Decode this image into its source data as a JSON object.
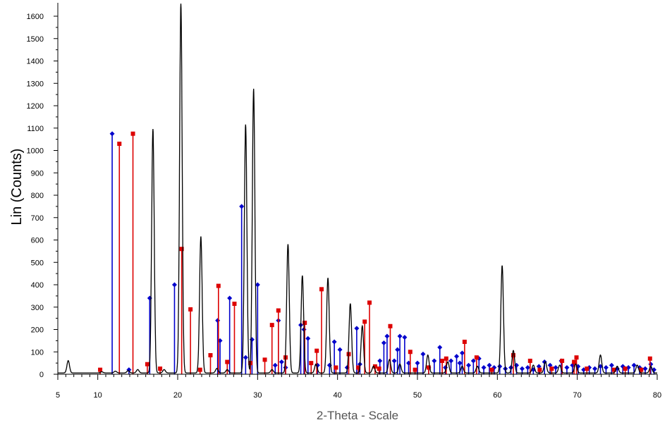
{
  "chart_data": {
    "type": "line",
    "title": "",
    "xlabel": "2-Theta - Scale",
    "ylabel": "Lin (Counts)",
    "xlim": [
      5,
      80
    ],
    "ylim": [
      0,
      1650
    ],
    "xticks": [
      5,
      10,
      20,
      30,
      40,
      50,
      60,
      70,
      80
    ],
    "yticks": [
      0,
      100,
      200,
      300,
      400,
      500,
      600,
      700,
      800,
      900,
      1000,
      1100,
      1200,
      1300,
      1400,
      1500,
      1600
    ],
    "grid": false,
    "legend": "none",
    "colors": {
      "pattern": "#000000",
      "blue": "#0000cc",
      "red": "#dd0000"
    },
    "pattern_peaks": [
      [
        6.3,
        55
      ],
      [
        10.5,
        5
      ],
      [
        12.2,
        8
      ],
      [
        13.8,
        10
      ],
      [
        15.0,
        15
      ],
      [
        16.9,
        1090
      ],
      [
        18.3,
        15
      ],
      [
        20.4,
        1650
      ],
      [
        22.9,
        610
      ],
      [
        24.9,
        20
      ],
      [
        26.2,
        15
      ],
      [
        28.5,
        1110
      ],
      [
        29.5,
        1270
      ],
      [
        31.8,
        15
      ],
      [
        33.8,
        575
      ],
      [
        35.6,
        435
      ],
      [
        37.3,
        40
      ],
      [
        38.8,
        425
      ],
      [
        41.6,
        310
      ],
      [
        43.1,
        210
      ],
      [
        44.5,
        30
      ],
      [
        46.5,
        60
      ],
      [
        47.8,
        40
      ],
      [
        51.3,
        80
      ],
      [
        53.8,
        50
      ],
      [
        55.6,
        30
      ],
      [
        57.5,
        30
      ],
      [
        60.6,
        480
      ],
      [
        62.0,
        100
      ],
      [
        64.5,
        35
      ],
      [
        66.0,
        50
      ],
      [
        67.8,
        35
      ],
      [
        69.8,
        40
      ],
      [
        72.9,
        80
      ],
      [
        75.0,
        30
      ],
      [
        77.5,
        35
      ],
      [
        79.2,
        30
      ]
    ],
    "series": [
      {
        "marker": "diamond",
        "color": "#0000cc",
        "values": [
          [
            11.8,
            1075
          ],
          [
            13.9,
            20
          ],
          [
            16.5,
            340
          ],
          [
            19.6,
            400
          ],
          [
            25.0,
            240
          ],
          [
            25.3,
            150
          ],
          [
            26.5,
            340
          ],
          [
            28.0,
            750
          ],
          [
            28.5,
            75
          ],
          [
            29.3,
            155
          ],
          [
            30.0,
            400
          ],
          [
            32.2,
            40
          ],
          [
            32.6,
            240
          ],
          [
            33.0,
            55
          ],
          [
            33.5,
            30
          ],
          [
            35.4,
            220
          ],
          [
            35.8,
            200
          ],
          [
            36.3,
            160
          ],
          [
            37.5,
            40
          ],
          [
            39.0,
            40
          ],
          [
            39.6,
            145
          ],
          [
            40.3,
            110
          ],
          [
            41.2,
            30
          ],
          [
            42.4,
            205
          ],
          [
            42.8,
            45
          ],
          [
            45.3,
            60
          ],
          [
            45.8,
            140
          ],
          [
            46.2,
            170
          ],
          [
            47.1,
            60
          ],
          [
            47.5,
            110
          ],
          [
            47.8,
            170
          ],
          [
            48.4,
            165
          ],
          [
            48.9,
            50
          ],
          [
            50.0,
            50
          ],
          [
            50.7,
            90
          ],
          [
            51.4,
            30
          ],
          [
            52.1,
            60
          ],
          [
            52.8,
            120
          ],
          [
            53.5,
            30
          ],
          [
            54.2,
            60
          ],
          [
            54.9,
            80
          ],
          [
            55.3,
            50
          ],
          [
            55.6,
            95
          ],
          [
            56.4,
            40
          ],
          [
            57.0,
            60
          ],
          [
            57.7,
            70
          ],
          [
            58.3,
            30
          ],
          [
            59.0,
            40
          ],
          [
            59.6,
            30
          ],
          [
            60.3,
            35
          ],
          [
            61.0,
            25
          ],
          [
            61.7,
            30
          ],
          [
            62.4,
            40
          ],
          [
            63.1,
            25
          ],
          [
            63.8,
            30
          ],
          [
            64.5,
            20
          ],
          [
            65.2,
            35
          ],
          [
            65.9,
            55
          ],
          [
            66.6,
            40
          ],
          [
            67.3,
            30
          ],
          [
            68.0,
            60
          ],
          [
            68.7,
            30
          ],
          [
            69.4,
            40
          ],
          [
            70.1,
            35
          ],
          [
            70.8,
            20
          ],
          [
            71.5,
            30
          ],
          [
            72.2,
            25
          ],
          [
            72.9,
            35
          ],
          [
            73.6,
            30
          ],
          [
            74.3,
            40
          ],
          [
            75.0,
            25
          ],
          [
            75.7,
            35
          ],
          [
            76.4,
            30
          ],
          [
            77.1,
            40
          ],
          [
            77.8,
            30
          ],
          [
            78.5,
            25
          ],
          [
            79.2,
            45
          ],
          [
            79.6,
            20
          ]
        ]
      },
      {
        "marker": "square",
        "color": "#dd0000",
        "values": [
          [
            10.3,
            20
          ],
          [
            12.7,
            1030
          ],
          [
            14.4,
            1075
          ],
          [
            16.2,
            45
          ],
          [
            17.8,
            25
          ],
          [
            20.5,
            560
          ],
          [
            21.6,
            290
          ],
          [
            22.8,
            20
          ],
          [
            24.1,
            85
          ],
          [
            25.1,
            395
          ],
          [
            26.2,
            55
          ],
          [
            27.1,
            315
          ],
          [
            29.1,
            50
          ],
          [
            30.9,
            65
          ],
          [
            31.8,
            220
          ],
          [
            32.6,
            285
          ],
          [
            33.5,
            75
          ],
          [
            35.9,
            230
          ],
          [
            36.7,
            50
          ],
          [
            37.4,
            105
          ],
          [
            38.0,
            380
          ],
          [
            39.8,
            30
          ],
          [
            41.4,
            90
          ],
          [
            42.6,
            30
          ],
          [
            43.4,
            235
          ],
          [
            44.0,
            320
          ],
          [
            44.7,
            35
          ],
          [
            45.2,
            25
          ],
          [
            46.6,
            215
          ],
          [
            49.1,
            100
          ],
          [
            49.7,
            20
          ],
          [
            51.4,
            30
          ],
          [
            53.1,
            60
          ],
          [
            53.6,
            70
          ],
          [
            55.9,
            145
          ],
          [
            57.4,
            75
          ],
          [
            59.3,
            20
          ],
          [
            62.0,
            85
          ],
          [
            64.1,
            60
          ],
          [
            65.3,
            20
          ],
          [
            66.8,
            25
          ],
          [
            68.1,
            60
          ],
          [
            69.6,
            55
          ],
          [
            69.9,
            75
          ],
          [
            71.2,
            25
          ],
          [
            74.6,
            20
          ],
          [
            76.0,
            25
          ],
          [
            78.0,
            20
          ],
          [
            79.1,
            70
          ]
        ]
      }
    ]
  }
}
